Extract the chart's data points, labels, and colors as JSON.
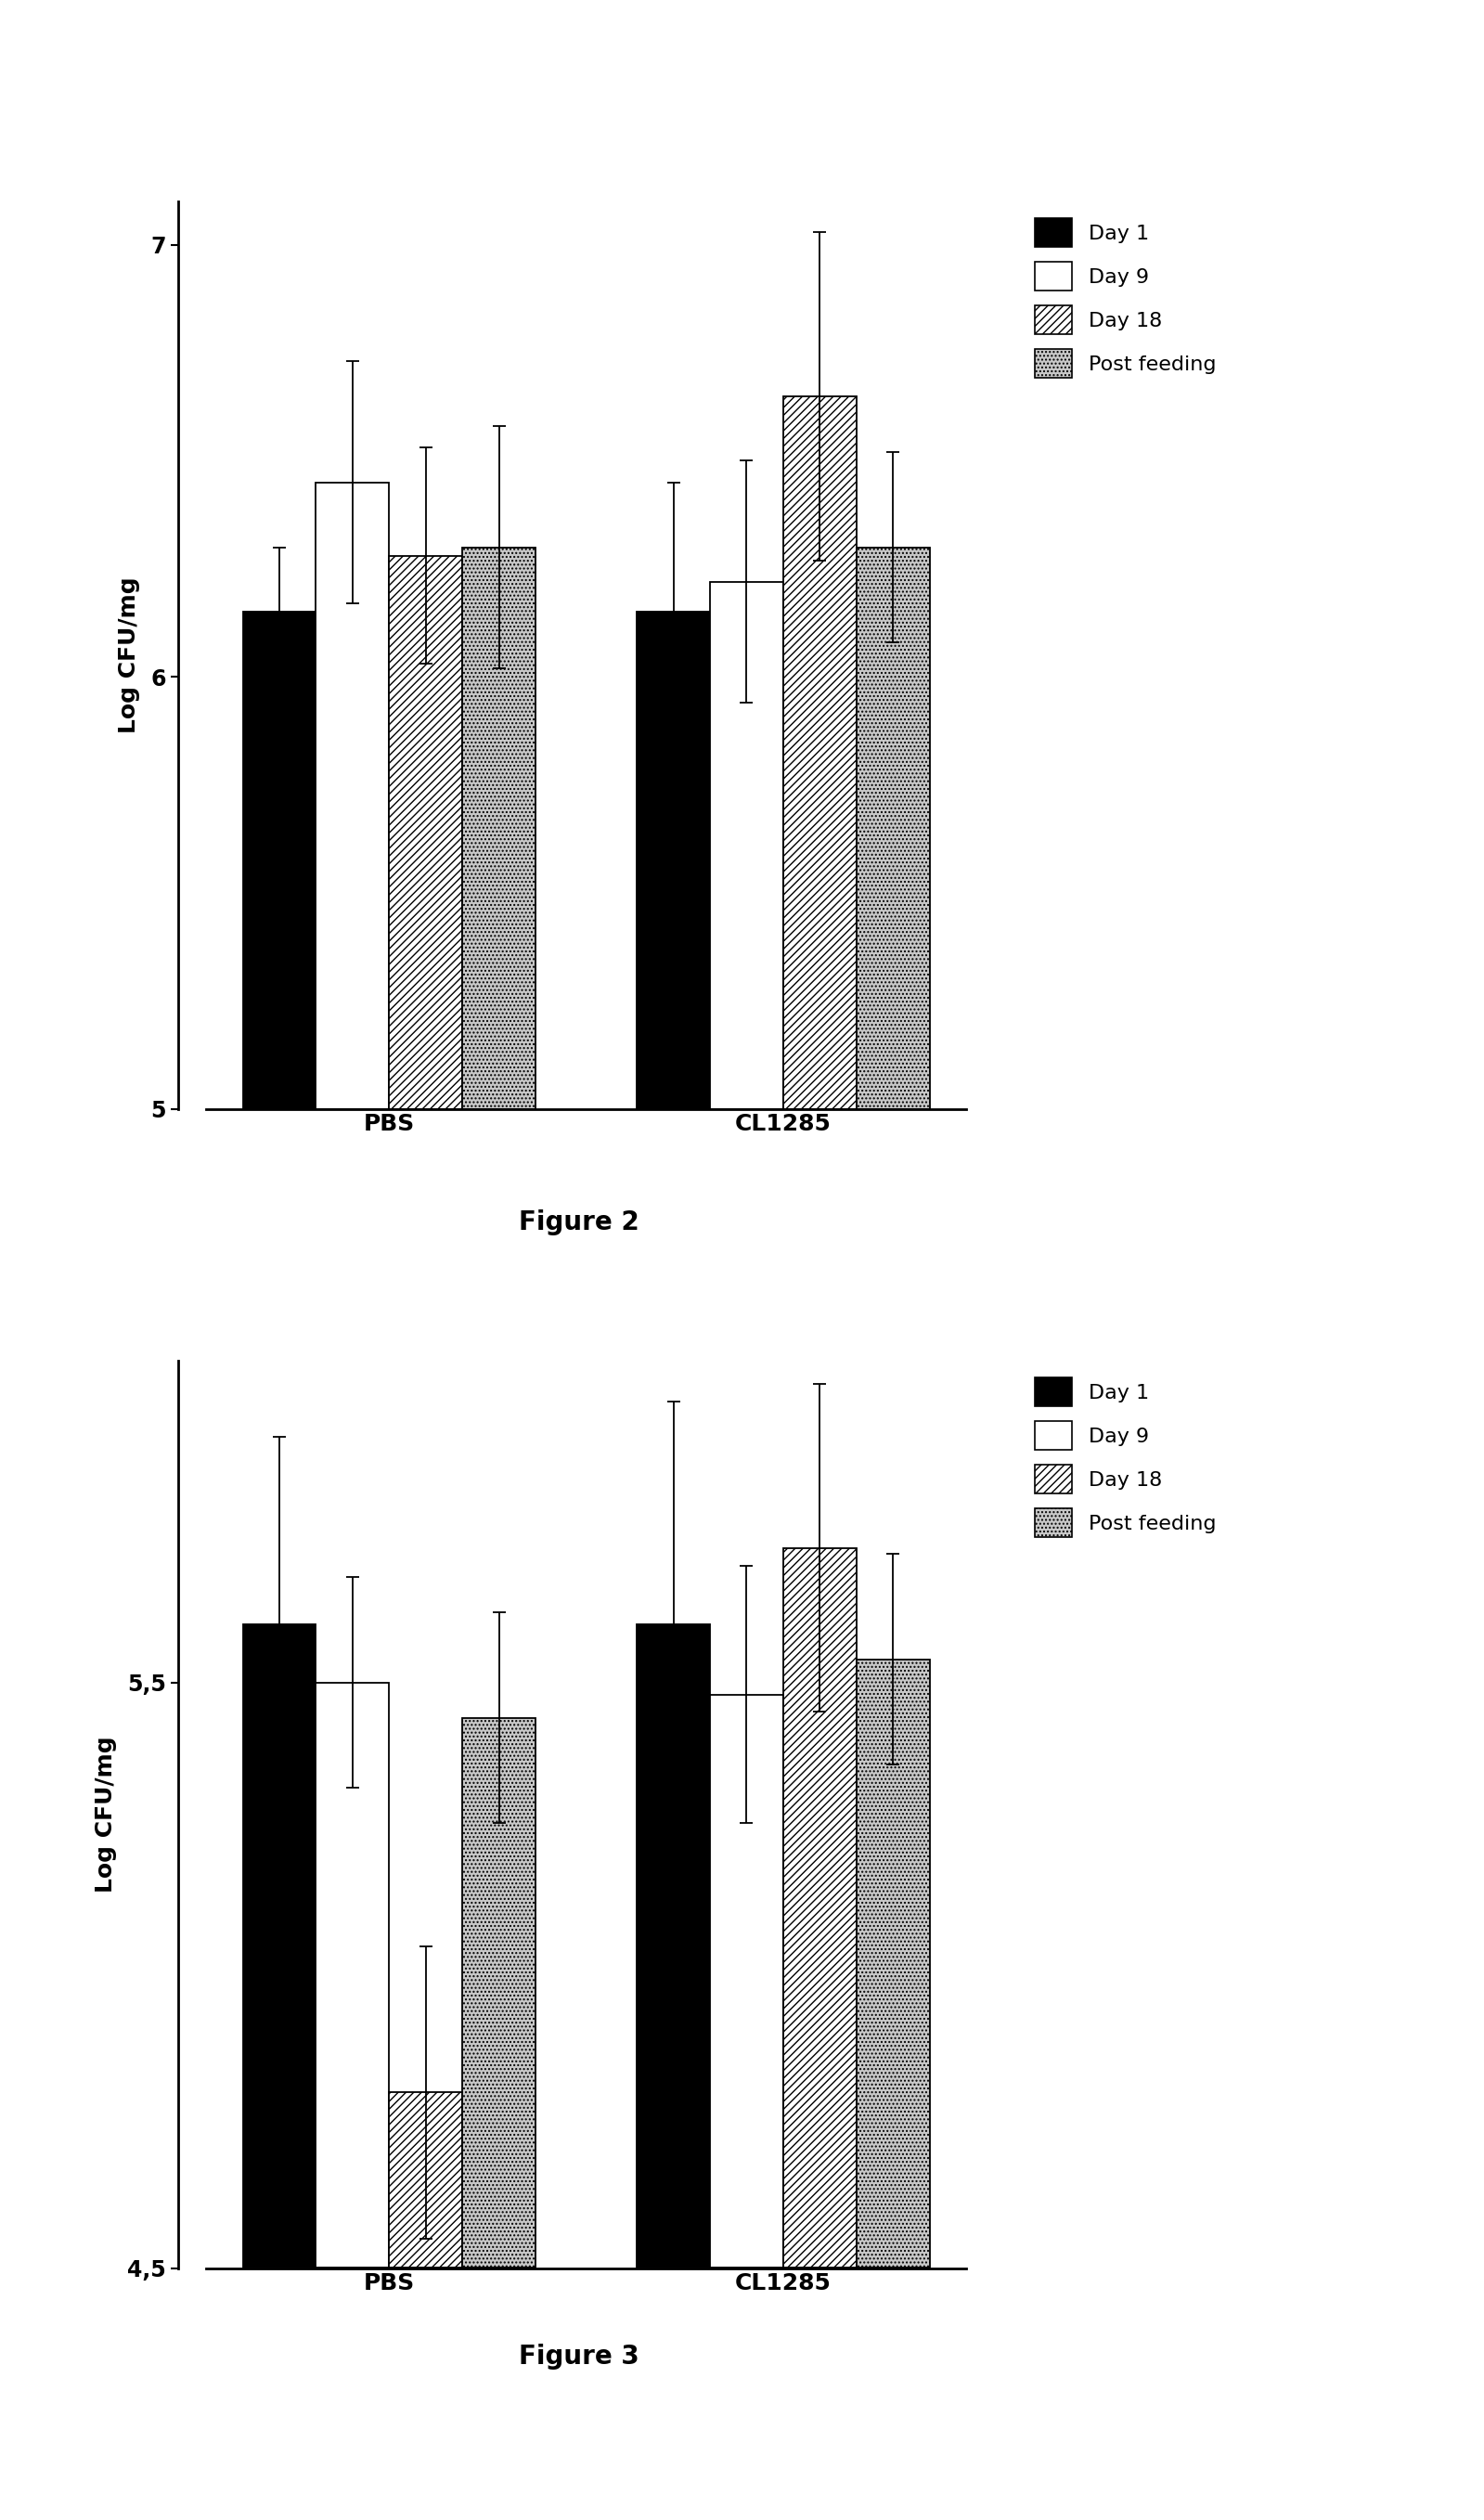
{
  "fig2": {
    "title": "Figure 2",
    "ylabel": "Log CFU/mg",
    "ylim": [
      5.0,
      7.1
    ],
    "yticks": [
      5,
      6,
      7
    ],
    "yticklabels": [
      "5",
      "6",
      "7"
    ],
    "groups": [
      "PBS",
      "CL1285"
    ],
    "group_centers": [
      0.4,
      1.1
    ],
    "series": [
      "Day 1",
      "Day 9",
      "Day 18",
      "Post feeding"
    ],
    "values": [
      [
        6.15,
        6.45,
        6.28,
        6.3
      ],
      [
        6.15,
        6.22,
        6.65,
        6.3
      ]
    ],
    "errors": [
      [
        0.15,
        0.28,
        0.25,
        0.28
      ],
      [
        0.3,
        0.28,
        0.38,
        0.22
      ]
    ]
  },
  "fig3": {
    "title": "Figure 3",
    "ylabel": "Log CFU/mg",
    "ylim": [
      4.5,
      6.05
    ],
    "yticks": [
      4.5,
      5.5
    ],
    "yticklabels": [
      "4,5",
      "5,5"
    ],
    "groups": [
      "PBS",
      "CL1285"
    ],
    "group_centers": [
      0.4,
      1.1
    ],
    "series": [
      "Day 1",
      "Day 9",
      "Day 18",
      "Post feeding"
    ],
    "values": [
      [
        5.6,
        5.5,
        4.8,
        5.44
      ],
      [
        5.6,
        5.48,
        5.73,
        5.54
      ]
    ],
    "errors": [
      [
        0.32,
        0.18,
        0.25,
        0.18
      ],
      [
        0.38,
        0.22,
        0.28,
        0.18
      ]
    ]
  },
  "bar_width": 0.13,
  "fill_colors": [
    "#000000",
    "#ffffff",
    "#ffffff",
    "#c8c8c8"
  ],
  "hatches": [
    null,
    null,
    "////",
    "...."
  ],
  "edgecolor": "#000000",
  "background_color": "#ffffff",
  "legend_labels": [
    "Day 1",
    "Day 9",
    "Day 18",
    "Post feeding"
  ],
  "legend_fill_colors": [
    "#000000",
    "#ffffff",
    "#ffffff",
    "#c8c8c8"
  ],
  "legend_hatches": [
    null,
    null,
    "////",
    "...."
  ],
  "title_fontsize": 20,
  "label_fontsize": 18,
  "tick_fontsize": 17,
  "legend_fontsize": 16,
  "xlabel_fontsize": 18
}
